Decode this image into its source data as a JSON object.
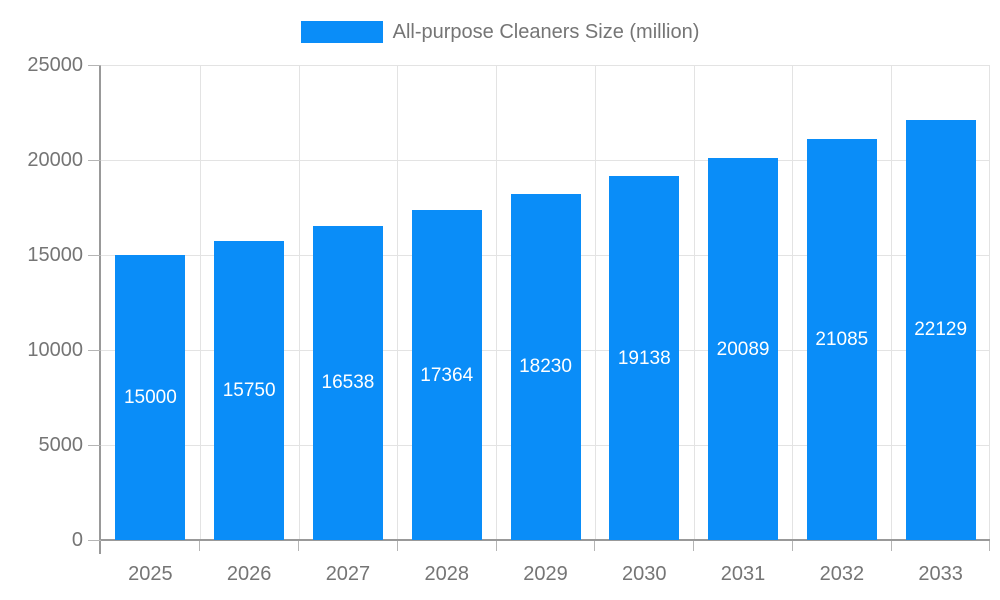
{
  "legend": {
    "label": "All-purpose Cleaners Size (million)"
  },
  "chart_data": {
    "type": "bar",
    "title": "",
    "categories": [
      "2025",
      "2026",
      "2027",
      "2028",
      "2029",
      "2030",
      "2031",
      "2032",
      "2033"
    ],
    "series": [
      {
        "name": "All-purpose Cleaners Size (million)",
        "values": [
          15000,
          15750,
          16538,
          17364,
          18230,
          19138,
          20089,
          21085,
          22129
        ]
      }
    ],
    "data_labels": [
      "15000",
      "15750",
      "16538",
      "17364",
      "18230",
      "19138",
      "20089",
      "21085",
      "22129"
    ],
    "xlabel": "",
    "ylabel": "",
    "ylim": [
      0,
      25000
    ],
    "yticks": [
      0,
      5000,
      10000,
      15000,
      20000,
      25000
    ],
    "ytick_labels": [
      "0",
      "5000",
      "10000",
      "15000",
      "20000",
      "25000"
    ],
    "grid": "horizontal-and-vertical",
    "legend_position": "top-center",
    "colors": {
      "bar": "#0a8df8",
      "grid": "#e3e3e3",
      "axis": "#999999",
      "tick": "#b5b5b5",
      "axis_text": "#757575",
      "bar_label_text": "#ffffff",
      "background": "#ffffff"
    }
  }
}
